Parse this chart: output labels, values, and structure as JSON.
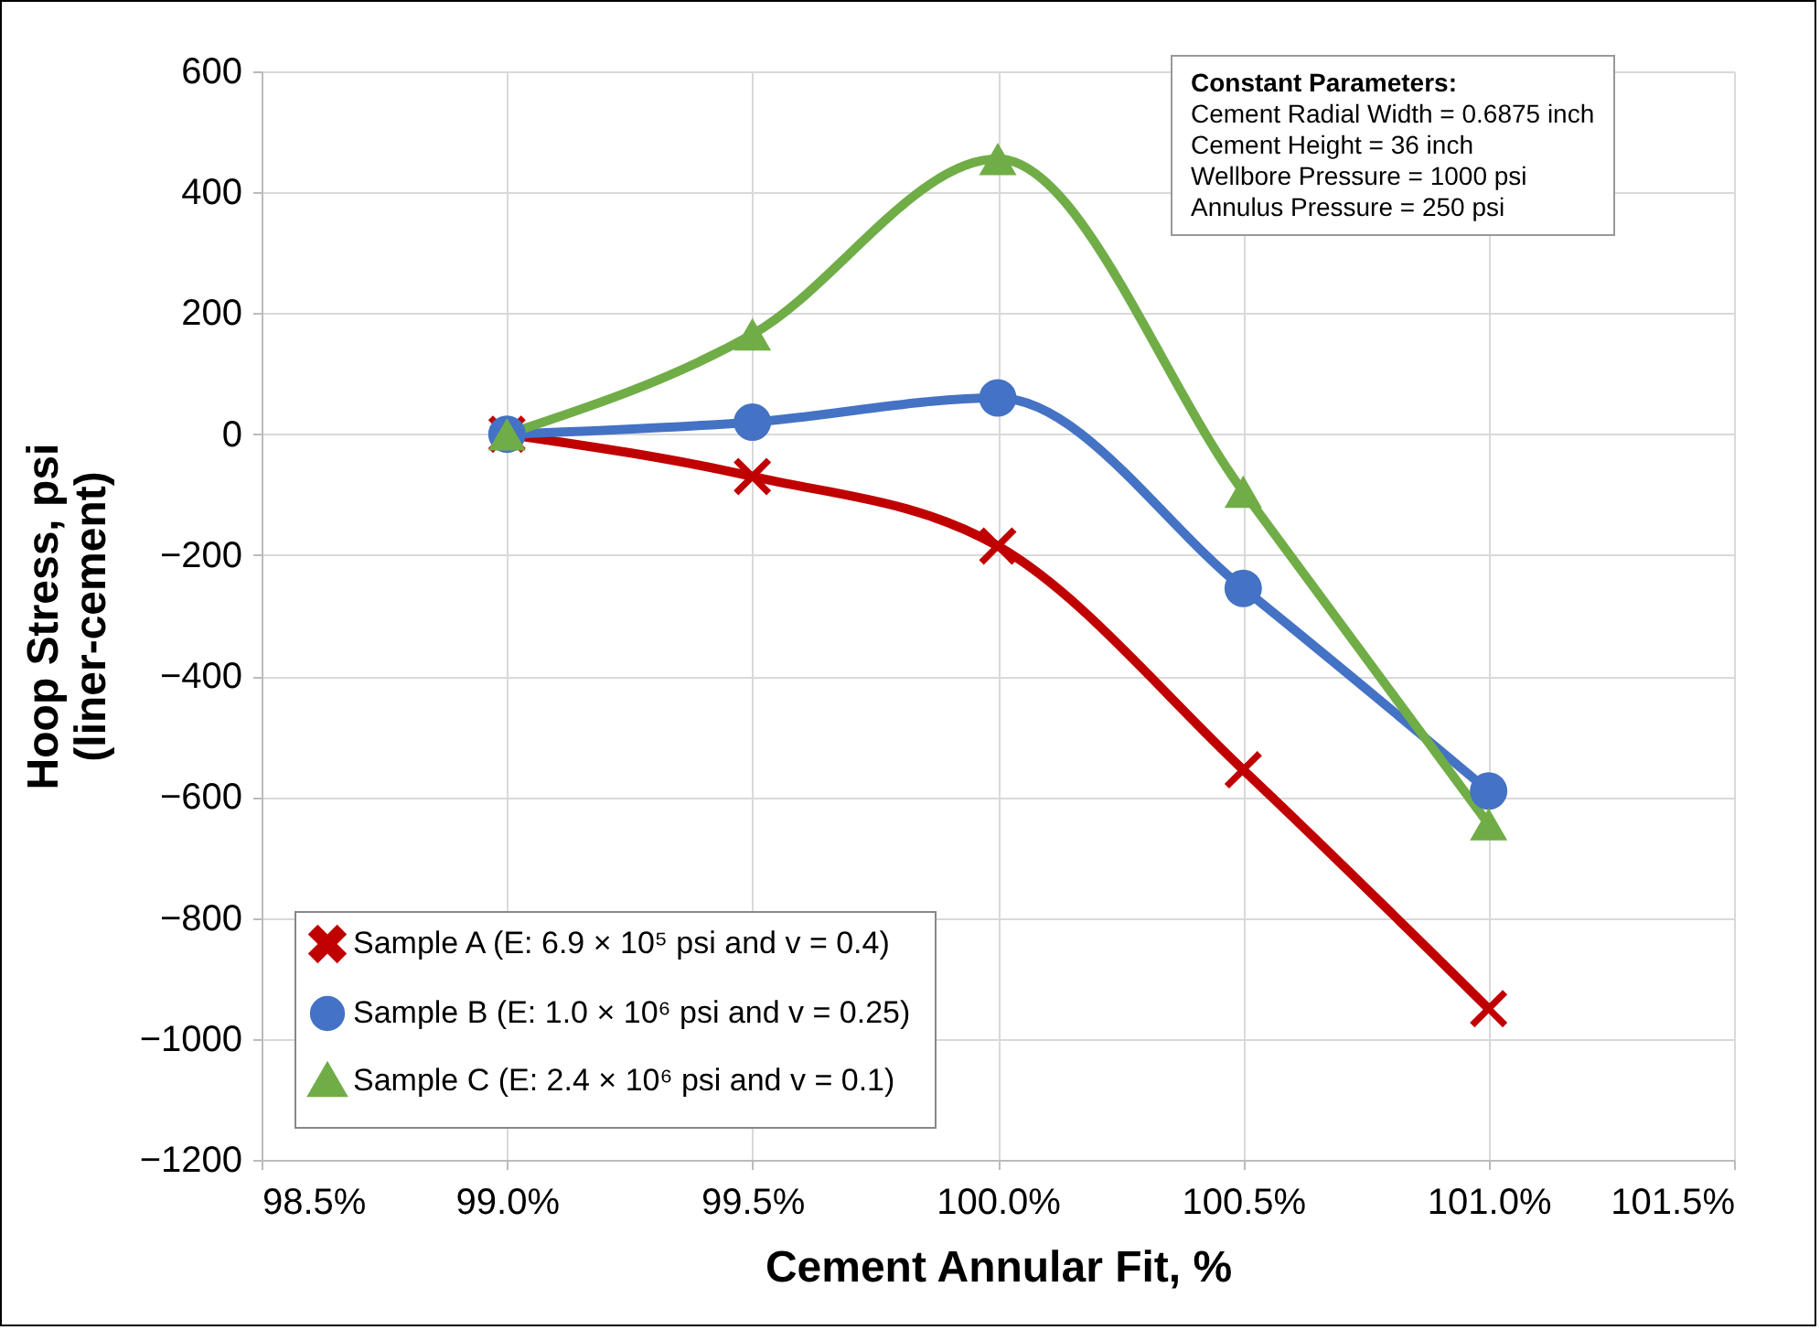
{
  "chart_data": {
    "type": "line",
    "xlabel": "Cement Annular Fit, %",
    "ylabel": "Hoop Stress, psi\n(liner-cement)",
    "x": [
      99.0,
      99.5,
      100.0,
      100.5,
      101.0
    ],
    "series": [
      {
        "name": "Sample A (E:  6.9 × 10⁵ psi and v = 0.4)",
        "color": "#c00000",
        "marker": "cross",
        "values": [
          0,
          -70,
          -185,
          -555,
          -950
        ]
      },
      {
        "name": "Sample B (E:  1.0 × 10⁶ psi and v = 0.25)",
        "color": "#4472c4",
        "marker": "circle",
        "values": [
          0,
          20,
          60,
          -255,
          -590
        ]
      },
      {
        "name": "Sample C (E:  2.4 × 10⁶ psi and v = 0.1)",
        "color": "#70ad47",
        "marker": "triangle",
        "values": [
          0,
          165,
          455,
          -95,
          -645
        ]
      }
    ],
    "xlim": [
      98.5,
      101.5
    ],
    "xticks": [
      {
        "value": 98.5,
        "label": "98.5%"
      },
      {
        "value": 99.0,
        "label": "99.0%"
      },
      {
        "value": 99.5,
        "label": "99.5%"
      },
      {
        "value": 100.0,
        "label": "100.0%"
      },
      {
        "value": 100.5,
        "label": "100.5%"
      },
      {
        "value": 101.0,
        "label": "101.0%"
      },
      {
        "value": 101.5,
        "label": "101.5%"
      }
    ],
    "ylim": [
      -1200,
      600
    ],
    "yticks": [
      -1200,
      -1000,
      -800,
      -600,
      -400,
      -200,
      0,
      200,
      400,
      600
    ],
    "grid": true,
    "legend": "bottom left",
    "line_style": "solid",
    "annotations": [
      "Constant Parameters:",
      "Cement Radial Width = 0.6875 inch",
      "Cement Height = 36 inch",
      "Wellbore Pressure = 1000 psi",
      "Annulus Pressure = 250 psi"
    ]
  }
}
